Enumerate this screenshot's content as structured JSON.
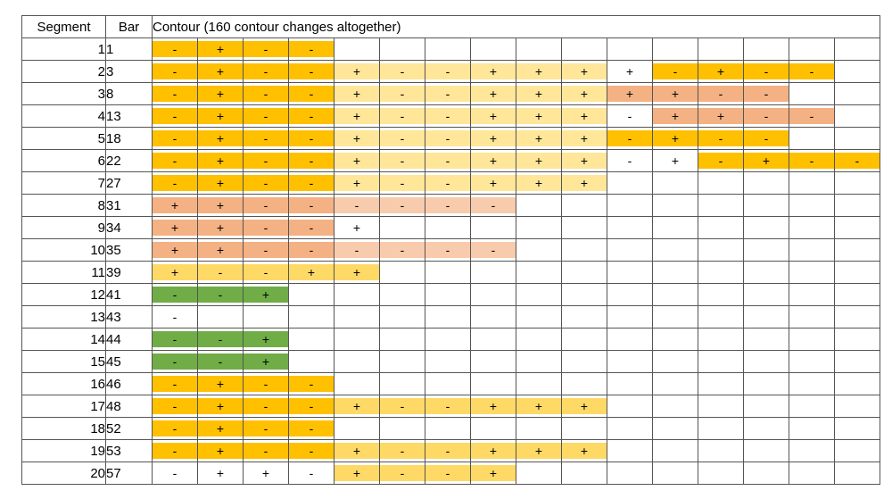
{
  "headers": {
    "segment": "Segment",
    "bar": "Bar",
    "contour": "Contour (160 contour changes altogether)"
  },
  "colors": {
    "O": "#FFC000",
    "Y": "#FFD966",
    "L": "#FFE699",
    "S": "#F4B183",
    "P": "#F8CBAD",
    "G": "#70AD47",
    "W": "#FFFFFF"
  },
  "rows": [
    {
      "segment": "1",
      "bar": "1",
      "cells": [
        [
          "-",
          "O"
        ],
        [
          "+",
          "O"
        ],
        [
          "-",
          "O"
        ],
        [
          "-",
          "O"
        ]
      ]
    },
    {
      "segment": "2",
      "bar": "3",
      "cells": [
        [
          "-",
          "O"
        ],
        [
          "+",
          "O"
        ],
        [
          "-",
          "O"
        ],
        [
          "-",
          "O"
        ],
        [
          "+",
          "L"
        ],
        [
          "-",
          "L"
        ],
        [
          "-",
          "L"
        ],
        [
          "+",
          "L"
        ],
        [
          "+",
          "L"
        ],
        [
          "+",
          "L"
        ],
        [
          "+",
          "W"
        ],
        [
          "-",
          "O"
        ],
        [
          "+",
          "O"
        ],
        [
          "-",
          "O"
        ],
        [
          "-",
          "O"
        ]
      ]
    },
    {
      "segment": "3",
      "bar": "8",
      "cells": [
        [
          "-",
          "O"
        ],
        [
          "+",
          "O"
        ],
        [
          "-",
          "O"
        ],
        [
          "-",
          "O"
        ],
        [
          "+",
          "L"
        ],
        [
          "-",
          "L"
        ],
        [
          "-",
          "L"
        ],
        [
          "+",
          "L"
        ],
        [
          "+",
          "L"
        ],
        [
          "+",
          "L"
        ],
        [
          "+",
          "S"
        ],
        [
          "+",
          "S"
        ],
        [
          "-",
          "S"
        ],
        [
          "-",
          "S"
        ]
      ]
    },
    {
      "segment": "4",
      "bar": "13",
      "cells": [
        [
          "-",
          "O"
        ],
        [
          "+",
          "O"
        ],
        [
          "-",
          "O"
        ],
        [
          "-",
          "O"
        ],
        [
          "+",
          "L"
        ],
        [
          "-",
          "L"
        ],
        [
          "-",
          "L"
        ],
        [
          "+",
          "L"
        ],
        [
          "+",
          "L"
        ],
        [
          "+",
          "L"
        ],
        [
          "-",
          "W"
        ],
        [
          "+",
          "S"
        ],
        [
          "+",
          "S"
        ],
        [
          "-",
          "S"
        ],
        [
          "-",
          "S"
        ]
      ]
    },
    {
      "segment": "5",
      "bar": "18",
      "cells": [
        [
          "-",
          "O"
        ],
        [
          "+",
          "O"
        ],
        [
          "-",
          "O"
        ],
        [
          "-",
          "O"
        ],
        [
          "+",
          "L"
        ],
        [
          "-",
          "L"
        ],
        [
          "-",
          "L"
        ],
        [
          "+",
          "L"
        ],
        [
          "+",
          "L"
        ],
        [
          "+",
          "L"
        ],
        [
          "-",
          "O"
        ],
        [
          "+",
          "O"
        ],
        [
          "-",
          "O"
        ],
        [
          "-",
          "O"
        ]
      ]
    },
    {
      "segment": "6",
      "bar": "22",
      "cells": [
        [
          "-",
          "O"
        ],
        [
          "+",
          "O"
        ],
        [
          "-",
          "O"
        ],
        [
          "-",
          "O"
        ],
        [
          "+",
          "L"
        ],
        [
          "-",
          "L"
        ],
        [
          "-",
          "L"
        ],
        [
          "+",
          "L"
        ],
        [
          "+",
          "L"
        ],
        [
          "+",
          "L"
        ],
        [
          "-",
          "W"
        ],
        [
          "+",
          "W"
        ],
        [
          "-",
          "O"
        ],
        [
          "+",
          "O"
        ],
        [
          "-",
          "O"
        ],
        [
          "-",
          "O"
        ]
      ]
    },
    {
      "segment": "7",
      "bar": "27",
      "cells": [
        [
          "-",
          "O"
        ],
        [
          "+",
          "O"
        ],
        [
          "-",
          "O"
        ],
        [
          "-",
          "O"
        ],
        [
          "+",
          "L"
        ],
        [
          "-",
          "L"
        ],
        [
          "-",
          "L"
        ],
        [
          "+",
          "L"
        ],
        [
          "+",
          "L"
        ],
        [
          "+",
          "L"
        ]
      ]
    },
    {
      "segment": "8",
      "bar": "31",
      "cells": [
        [
          "+",
          "S"
        ],
        [
          "+",
          "S"
        ],
        [
          "-",
          "S"
        ],
        [
          "-",
          "S"
        ],
        [
          "-",
          "P"
        ],
        [
          "-",
          "P"
        ],
        [
          "-",
          "P"
        ],
        [
          "-",
          "P"
        ]
      ]
    },
    {
      "segment": "9",
      "bar": "34",
      "cells": [
        [
          "+",
          "S"
        ],
        [
          "+",
          "S"
        ],
        [
          "-",
          "S"
        ],
        [
          "-",
          "S"
        ],
        [
          "+",
          "W"
        ]
      ]
    },
    {
      "segment": "10",
      "bar": "35",
      "cells": [
        [
          "+",
          "S"
        ],
        [
          "+",
          "S"
        ],
        [
          "-",
          "S"
        ],
        [
          "-",
          "S"
        ],
        [
          "-",
          "P"
        ],
        [
          "-",
          "P"
        ],
        [
          "-",
          "P"
        ],
        [
          "-",
          "P"
        ]
      ]
    },
    {
      "segment": "11",
      "bar": "39",
      "cells": [
        [
          "+",
          "Y"
        ],
        [
          "-",
          "Y"
        ],
        [
          "-",
          "Y"
        ],
        [
          "+",
          "Y"
        ],
        [
          "+",
          "Y"
        ]
      ]
    },
    {
      "segment": "12",
      "bar": "41",
      "cells": [
        [
          "-",
          "G"
        ],
        [
          "-",
          "G"
        ],
        [
          "+",
          "G"
        ]
      ]
    },
    {
      "segment": "13",
      "bar": "43",
      "cells": [
        [
          "-",
          "W"
        ]
      ]
    },
    {
      "segment": "14",
      "bar": "44",
      "cells": [
        [
          "-",
          "G"
        ],
        [
          "-",
          "G"
        ],
        [
          "+",
          "G"
        ]
      ]
    },
    {
      "segment": "15",
      "bar": "45",
      "cells": [
        [
          "-",
          "G"
        ],
        [
          "-",
          "G"
        ],
        [
          "+",
          "G"
        ]
      ]
    },
    {
      "segment": "16",
      "bar": "46",
      "cells": [
        [
          "-",
          "O"
        ],
        [
          "+",
          "O"
        ],
        [
          "-",
          "O"
        ],
        [
          "-",
          "O"
        ]
      ]
    },
    {
      "segment": "17",
      "bar": "48",
      "cells": [
        [
          "-",
          "O"
        ],
        [
          "+",
          "O"
        ],
        [
          "-",
          "O"
        ],
        [
          "-",
          "O"
        ],
        [
          "+",
          "Y"
        ],
        [
          "-",
          "Y"
        ],
        [
          "-",
          "Y"
        ],
        [
          "+",
          "Y"
        ],
        [
          "+",
          "Y"
        ],
        [
          "+",
          "Y"
        ]
      ]
    },
    {
      "segment": "18",
      "bar": "52",
      "cells": [
        [
          "-",
          "O"
        ],
        [
          "+",
          "O"
        ],
        [
          "-",
          "O"
        ],
        [
          "-",
          "O"
        ]
      ]
    },
    {
      "segment": "19",
      "bar": "53",
      "cells": [
        [
          "-",
          "O"
        ],
        [
          "+",
          "O"
        ],
        [
          "-",
          "O"
        ],
        [
          "-",
          "O"
        ],
        [
          "+",
          "Y"
        ],
        [
          "-",
          "Y"
        ],
        [
          "-",
          "Y"
        ],
        [
          "+",
          "Y"
        ],
        [
          "+",
          "Y"
        ],
        [
          "+",
          "Y"
        ]
      ]
    },
    {
      "segment": "20",
      "bar": "57",
      "cells": [
        [
          "-",
          "W"
        ],
        [
          "+",
          "W"
        ],
        [
          "+",
          "W"
        ],
        [
          "-",
          "W"
        ],
        [
          "+",
          "Y"
        ],
        [
          "-",
          "Y"
        ],
        [
          "-",
          "Y"
        ],
        [
          "+",
          "Y"
        ]
      ]
    }
  ]
}
